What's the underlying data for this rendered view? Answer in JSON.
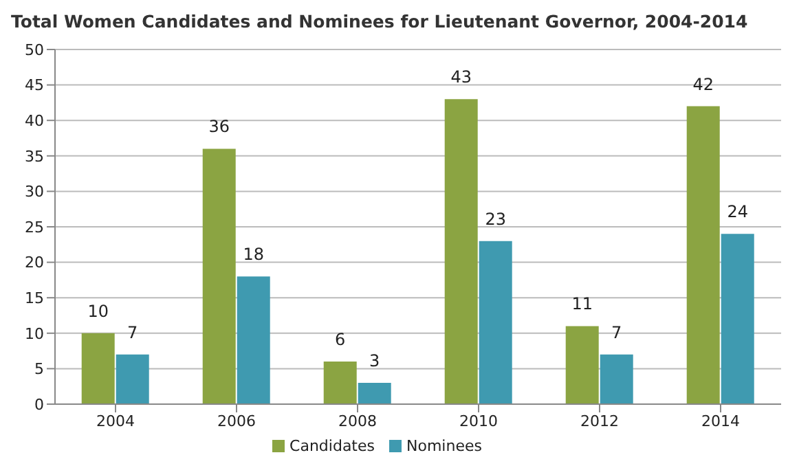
{
  "chart_data": {
    "type": "bar",
    "title": "Total Women Candidates and Nominees for Lieutenant Governor, 2004-2014",
    "categories": [
      "2004",
      "2006",
      "2008",
      "2010",
      "2012",
      "2014"
    ],
    "series": [
      {
        "name": "Candidates",
        "color": "#8ba442",
        "values": [
          10,
          36,
          6,
          43,
          11,
          42
        ]
      },
      {
        "name": "Nominees",
        "color": "#3f9ab0",
        "values": [
          7,
          18,
          3,
          23,
          7,
          24
        ]
      }
    ],
    "ylim": [
      0,
      50
    ],
    "yticks": [
      0,
      5,
      10,
      15,
      20,
      25,
      30,
      35,
      40,
      45,
      50
    ],
    "grid": "y",
    "legend": "bottom",
    "data_labels": true
  }
}
